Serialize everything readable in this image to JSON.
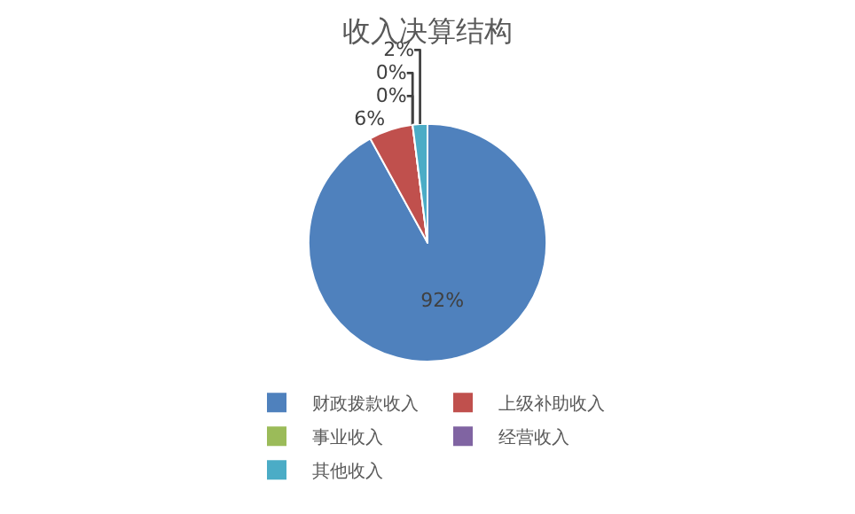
{
  "chart_data": {
    "type": "pie",
    "title": "收入决算结构",
    "categories": [
      "财政拨款收入",
      "上级补助收入",
      "事业收入",
      "经营收入",
      "其他收入"
    ],
    "values": [
      92,
      6,
      0,
      0,
      2
    ],
    "value_labels": [
      "92%",
      "6%",
      "0%",
      "0%",
      "2%"
    ],
    "colors": [
      "#4f81bd",
      "#c0504d",
      "#9bbb59",
      "#8064a2",
      "#4bacc6"
    ],
    "legend": "bottom"
  }
}
